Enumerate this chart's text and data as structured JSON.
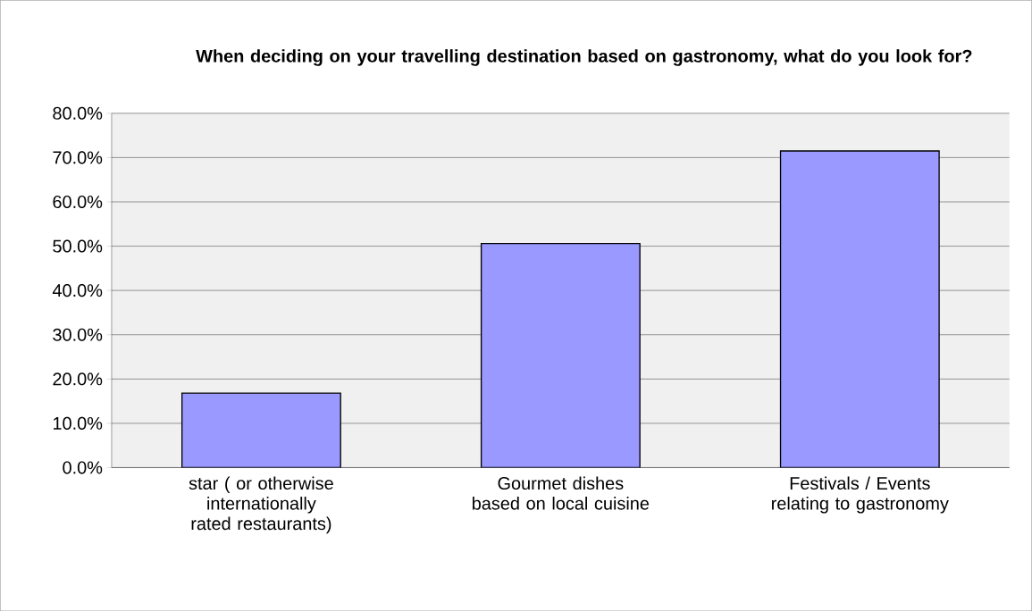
{
  "chart_data": {
    "type": "bar",
    "title": "When deciding on your travelling destination based on gastronomy, what do you look for?",
    "categories": [
      "star ( or otherwise internationally rated restaurants)",
      "Gourmet dishes based on local cuisine",
      "Festivals / Events relating to gastronomy"
    ],
    "values": [
      16.8,
      50.6,
      71.5
    ],
    "color": "#9999ff",
    "ylim": [
      0,
      80
    ],
    "yticks": [
      {
        "value": 0,
        "label": "0.0%"
      },
      {
        "value": 10,
        "label": "10.0%"
      },
      {
        "value": 20,
        "label": "20.0%"
      },
      {
        "value": 30,
        "label": "30.0%"
      },
      {
        "value": 40,
        "label": "40.0%"
      },
      {
        "value": 50,
        "label": "50.0%"
      },
      {
        "value": 60,
        "label": "60.0%"
      },
      {
        "value": 70,
        "label": "70.0%"
      },
      {
        "value": 80,
        "label": "80.0%"
      }
    ],
    "grid": "y"
  }
}
